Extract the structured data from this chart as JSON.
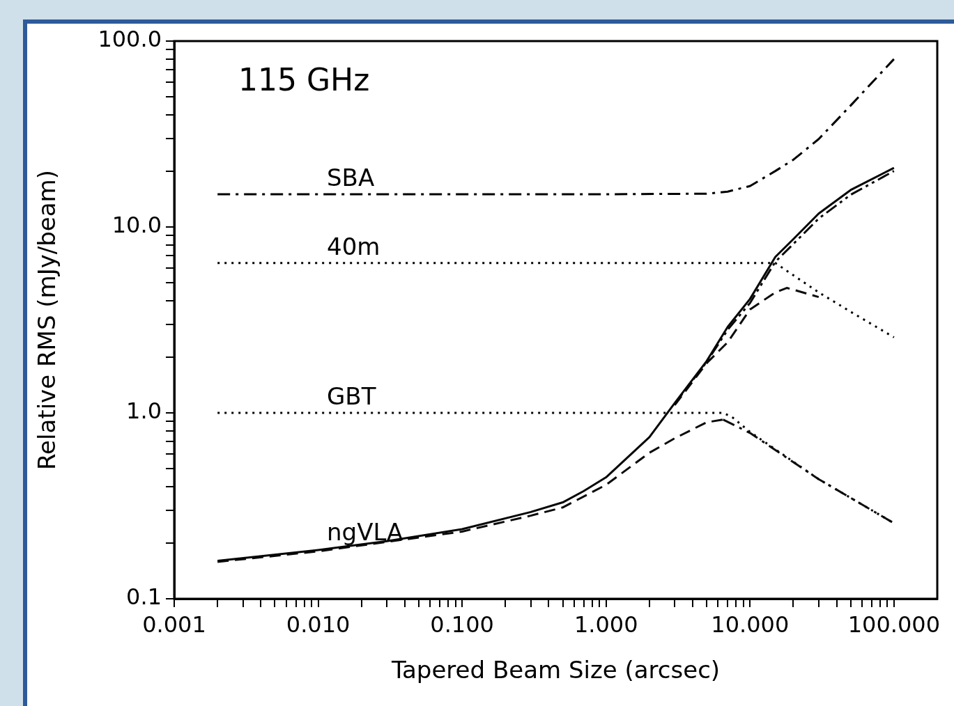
{
  "chart_data": {
    "type": "line",
    "xlabel": "Tapered Beam Size (arcsec)",
    "ylabel": "Relative RMS (mJy/beam)",
    "log": "xy",
    "grid": false,
    "legend": false,
    "marker": "none",
    "xlim": [
      0.001,
      200
    ],
    "ylim": [
      0.1,
      100
    ],
    "xticks": [
      {
        "value": 0.001,
        "label": "0.001"
      },
      {
        "value": 0.002,
        "label": null
      },
      {
        "value": 0.003,
        "label": null
      },
      {
        "value": 0.004,
        "label": null
      },
      {
        "value": 0.005,
        "label": null
      },
      {
        "value": 0.006,
        "label": null
      },
      {
        "value": 0.007,
        "label": null
      },
      {
        "value": 0.008,
        "label": null
      },
      {
        "value": 0.009,
        "label": null
      },
      {
        "value": 0.01,
        "label": "0.010"
      },
      {
        "value": 0.02,
        "label": null
      },
      {
        "value": 0.03,
        "label": null
      },
      {
        "value": 0.04,
        "label": null
      },
      {
        "value": 0.05,
        "label": null
      },
      {
        "value": 0.06,
        "label": null
      },
      {
        "value": 0.07,
        "label": null
      },
      {
        "value": 0.08,
        "label": null
      },
      {
        "value": 0.09,
        "label": null
      },
      {
        "value": 0.1,
        "label": "0.100"
      },
      {
        "value": 0.2,
        "label": null
      },
      {
        "value": 0.3,
        "label": null
      },
      {
        "value": 0.4,
        "label": null
      },
      {
        "value": 0.5,
        "label": null
      },
      {
        "value": 0.6,
        "label": null
      },
      {
        "value": 0.7,
        "label": null
      },
      {
        "value": 0.8,
        "label": null
      },
      {
        "value": 0.9,
        "label": null
      },
      {
        "value": 1,
        "label": "1.000"
      },
      {
        "value": 2,
        "label": null
      },
      {
        "value": 3,
        "label": null
      },
      {
        "value": 4,
        "label": null
      },
      {
        "value": 5,
        "label": null
      },
      {
        "value": 6,
        "label": null
      },
      {
        "value": 7,
        "label": null
      },
      {
        "value": 8,
        "label": null
      },
      {
        "value": 9,
        "label": null
      },
      {
        "value": 10,
        "label": "10.000"
      },
      {
        "value": 20,
        "label": null
      },
      {
        "value": 30,
        "label": null
      },
      {
        "value": 40,
        "label": null
      },
      {
        "value": 50,
        "label": null
      },
      {
        "value": 60,
        "label": null
      },
      {
        "value": 70,
        "label": null
      },
      {
        "value": 80,
        "label": null
      },
      {
        "value": 90,
        "label": null
      },
      {
        "value": 100,
        "label": "100.000"
      }
    ],
    "yticks": [
      {
        "value": 0.1,
        "label": "0.1"
      },
      {
        "value": 0.2,
        "label": null
      },
      {
        "value": 0.3,
        "label": null
      },
      {
        "value": 0.4,
        "label": null
      },
      {
        "value": 0.5,
        "label": null
      },
      {
        "value": 0.6,
        "label": null
      },
      {
        "value": 0.7,
        "label": null
      },
      {
        "value": 0.8,
        "label": null
      },
      {
        "value": 0.9,
        "label": null
      },
      {
        "value": 1,
        "label": "1.0"
      },
      {
        "value": 2,
        "label": null
      },
      {
        "value": 3,
        "label": null
      },
      {
        "value": 4,
        "label": null
      },
      {
        "value": 5,
        "label": null
      },
      {
        "value": 6,
        "label": null
      },
      {
        "value": 7,
        "label": null
      },
      {
        "value": 8,
        "label": null
      },
      {
        "value": 9,
        "label": null
      },
      {
        "value": 10,
        "label": "10.0"
      },
      {
        "value": 20,
        "label": null
      },
      {
        "value": 30,
        "label": null
      },
      {
        "value": 40,
        "label": null
      },
      {
        "value": 50,
        "label": null
      },
      {
        "value": 60,
        "label": null
      },
      {
        "value": 70,
        "label": null
      },
      {
        "value": 80,
        "label": null
      },
      {
        "value": 90,
        "label": null
      },
      {
        "value": 100,
        "label": "100.0"
      }
    ],
    "series": [
      {
        "name": "SBA",
        "color": "#000000",
        "line_style": "dashdot",
        "x": [
          0.002,
          1,
          5,
          7,
          10,
          15,
          20,
          30,
          50,
          100
        ],
        "values": [
          15,
          15,
          15.1,
          15.5,
          16.6,
          20,
          23,
          29.7,
          45,
          80
        ]
      },
      {
        "name": "40m",
        "color": "#020202",
        "line_style": "dotted",
        "x": [
          0.002,
          15,
          20,
          30,
          50,
          100
        ],
        "values": [
          6.4,
          6.4,
          5.5,
          4.45,
          3.5,
          2.55
        ]
      },
      {
        "name": "GBT",
        "color": "#040404",
        "line_style": "dotted",
        "x": [
          0.002,
          6.5,
          7.5,
          10,
          30,
          100
        ],
        "values": [
          1,
          1,
          0.95,
          0.79,
          0.44,
          0.255
        ]
      },
      {
        "name": "ngVLA",
        "color": "#060606",
        "line_style": "solid",
        "x": [
          0.002,
          0.01,
          0.03,
          0.1,
          0.3,
          0.5,
          0.7,
          1,
          2,
          3,
          5,
          7,
          10,
          15,
          20,
          30,
          50,
          100
        ],
        "values": [
          0.16,
          0.183,
          0.204,
          0.237,
          0.293,
          0.33,
          0.38,
          0.45,
          0.74,
          1.13,
          1.9,
          2.9,
          4.1,
          6.9,
          8.6,
          11.8,
          15.8,
          20.8
        ]
      },
      {
        "color": "#080808",
        "line_style": "dashdotdot",
        "x": [
          3,
          5,
          7,
          10,
          15,
          20,
          30,
          50,
          100
        ],
        "values": [
          1.12,
          1.88,
          2.8,
          3.9,
          6.5,
          8.1,
          11.1,
          14.9,
          20
        ]
      },
      {
        "color": "#0a0a0a",
        "line_style": "dashed",
        "x": [
          0.002,
          0.01,
          0.1,
          0.3,
          0.5,
          1,
          2,
          3,
          5,
          6.5
        ],
        "values": [
          0.158,
          0.18,
          0.23,
          0.28,
          0.31,
          0.41,
          0.61,
          0.73,
          0.89,
          0.92
        ]
      },
      {
        "color": "#0c0c0c",
        "line_style": "dashed",
        "x": [
          3,
          5,
          7,
          10,
          15,
          18,
          20,
          30
        ],
        "values": [
          1.1,
          1.85,
          2.4,
          3.6,
          4.45,
          4.7,
          4.6,
          4.2
        ]
      },
      {
        "color": "#0e0e0e",
        "line_style": "dashdot",
        "x": [
          6.5,
          10,
          30,
          100
        ],
        "values": [
          0.92,
          0.78,
          0.44,
          0.255
        ]
      }
    ],
    "annotations": [
      "115 GHz"
    ]
  }
}
